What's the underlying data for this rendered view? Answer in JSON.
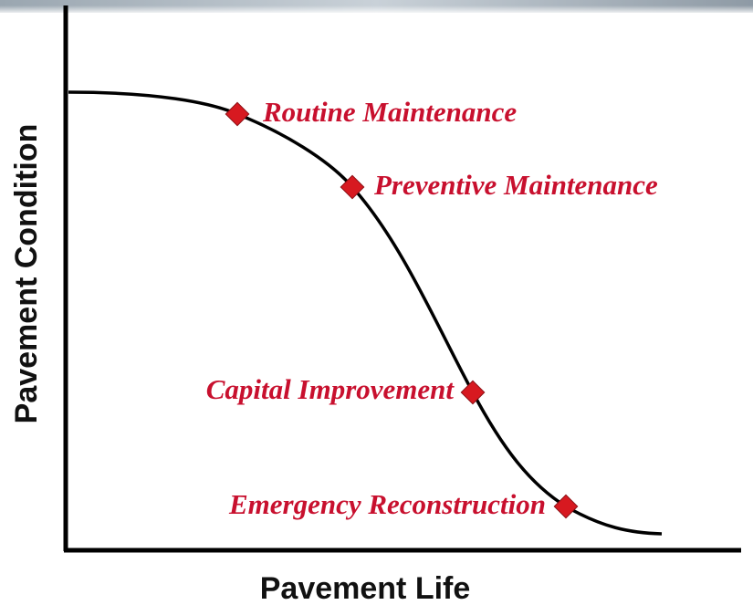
{
  "axes": {
    "y_label": "Pavement Condition",
    "x_label": "Pavement Life"
  },
  "stages": [
    {
      "label": "Routine Maintenance"
    },
    {
      "label": "Preventive Maintenance"
    },
    {
      "label": "Capital Improvement"
    },
    {
      "label": "Emergency Reconstruction"
    }
  ]
}
